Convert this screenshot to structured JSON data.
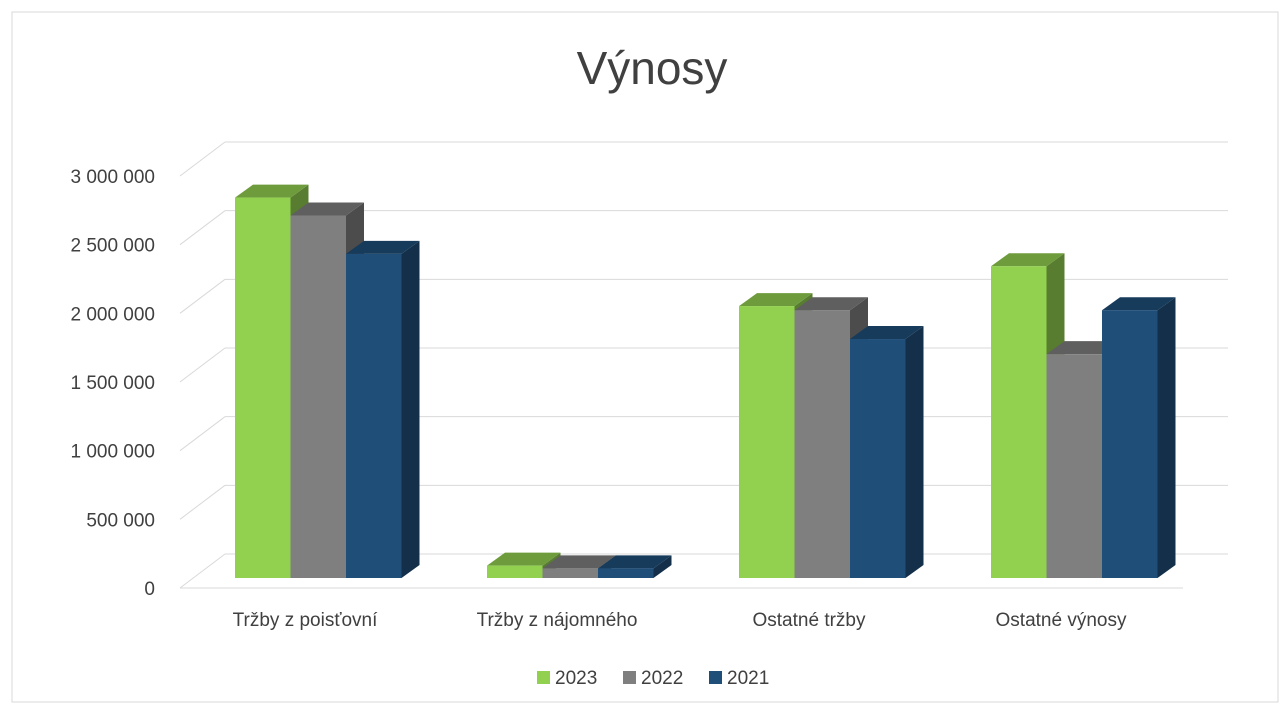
{
  "chart_data": {
    "type": "bar3d",
    "title": "Výnosy",
    "categories": [
      "Tržby z poisťovní",
      "Tržby z nájomného",
      "Ostatné tržby",
      "Ostatné výnosy"
    ],
    "series": [
      {
        "name": "2023",
        "color": "#92d050",
        "values": [
          2770000,
          90000,
          1980000,
          2270000
        ]
      },
      {
        "name": "2022",
        "color": "#7f7f7f",
        "values": [
          2640000,
          70000,
          1950000,
          1630000
        ]
      },
      {
        "name": "2021",
        "color": "#1f4e79",
        "values": [
          2360000,
          70000,
          1740000,
          1950000
        ]
      }
    ],
    "ylim": [
      0,
      3000000
    ],
    "yticks": [
      0,
      {
        "value": 500000,
        "label": "500 000"
      },
      {
        "value": 1000000,
        "label": "1 000 000"
      },
      {
        "value": 1500000,
        "label": "1 500 000"
      },
      {
        "value": 2000000,
        "label": "2 000 000"
      },
      {
        "value": 2500000,
        "label": "2 500 000"
      },
      {
        "value": 3000000,
        "label": "3 000 000"
      }
    ],
    "grid": true,
    "legend": "bottom"
  }
}
